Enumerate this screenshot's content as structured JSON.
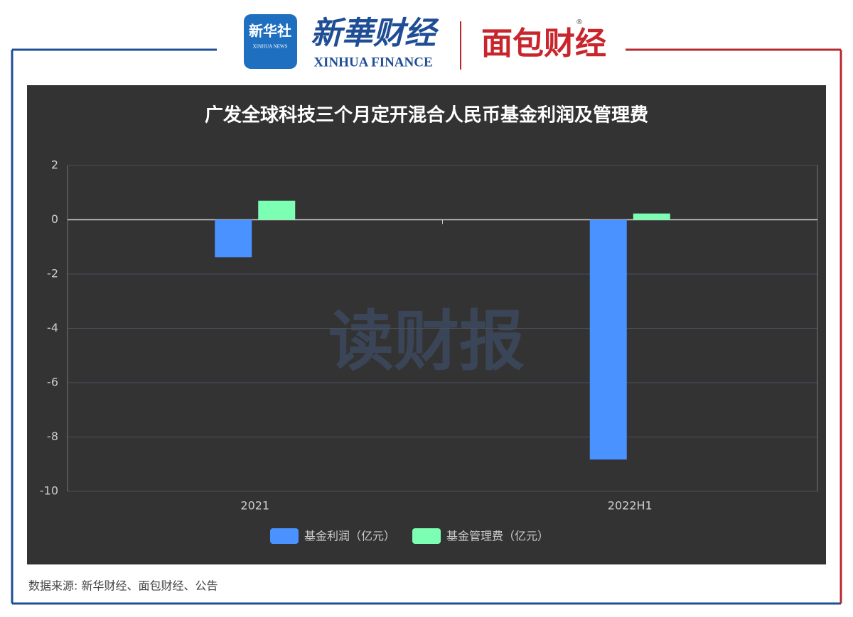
{
  "header": {
    "logo_mark": "新华社",
    "logo_mark_sub": "XINHUA NEWS",
    "brand": "新華财经",
    "brand_sub": "XINHUA FINANCE",
    "partner": "面包财经",
    "registered": "®"
  },
  "watermark": "读财报",
  "footer": {
    "source": "数据来源: 新华财经、面包财经、公告"
  },
  "chart_data": {
    "type": "bar",
    "title": "广发全球科技三个月定开混合人民币基金利润及管理费",
    "categories": [
      "2021",
      "2022H1"
    ],
    "series": [
      {
        "name": "基金利润（亿元）",
        "color": "#4992ff",
        "values": [
          -1.38,
          -8.83
        ]
      },
      {
        "name": "基金管理费（亿元）",
        "color": "#7cffb2",
        "values": [
          0.7,
          0.23
        ]
      }
    ],
    "ylim": [
      -10,
      2
    ],
    "yticks": [
      -10,
      -8,
      -6,
      -4,
      -2,
      0,
      2
    ],
    "grid": true,
    "legend": "bottom"
  }
}
